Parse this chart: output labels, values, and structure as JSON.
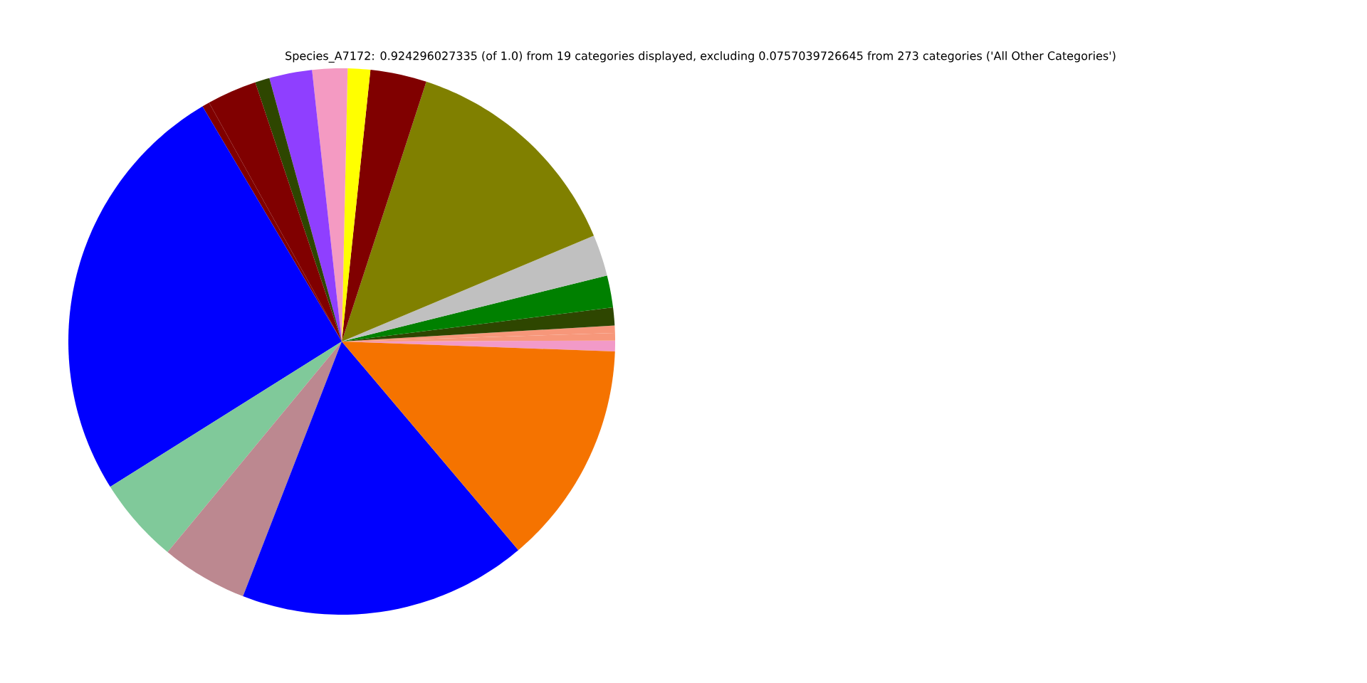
{
  "chart_data": {
    "type": "pie",
    "title": "Species_A7172: 0.924296027335 (of 1.0) from 19 categories displayed, excluding 0.0757039726645 from 273 categories ('All Other Categories')",
    "categories": [
      null,
      null,
      null,
      null,
      null,
      null,
      null,
      null,
      null,
      null,
      null,
      null,
      null,
      null,
      null,
      null,
      null,
      null,
      null
    ],
    "values": [
      0.64,
      0.44,
      0.44,
      1.06,
      1.89,
      2.44,
      13.67,
      3.33,
      1.33,
      2.08,
      2.53,
      0.86,
      2.94,
      0.44,
      25.42,
      5.08,
      5.11,
      17.06,
      13.24
    ],
    "colors": [
      "#f29ac8",
      "#f7977a",
      "#f7977a",
      "#2e4600",
      "#008000",
      "#c0c0c0",
      "#808000",
      "#800000",
      "#ffff00",
      "#f49ac2",
      "#8f3fff",
      "#2e4600",
      "#800000",
      "#800000",
      "#0000ff",
      "#80c99a",
      "#bc8890",
      "#0000ff",
      "#f57300"
    ]
  }
}
